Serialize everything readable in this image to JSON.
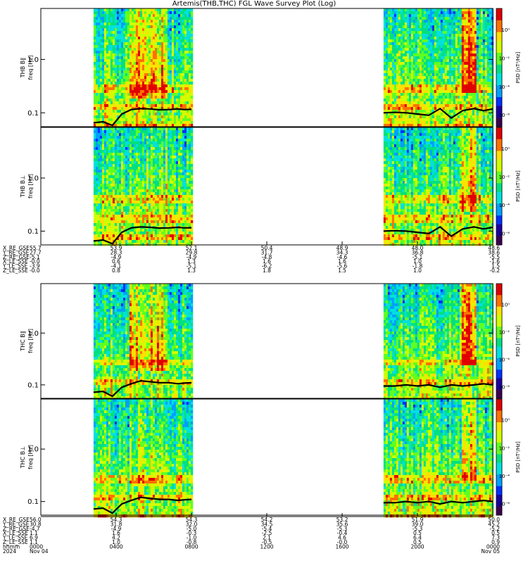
{
  "title": "Artemis(THB,THC) FGL Wave Survey Plot (Log)",
  "colors": {
    "trace": "#000000",
    "frame": "#000000",
    "background": "#ffffff",
    "colormap": [
      "#3b0050",
      "#1a00a0",
      "#0030ff",
      "#00a0ff",
      "#00e0e0",
      "#00e080",
      "#60ff20",
      "#d0ff00",
      "#ffe000",
      "#ff7000",
      "#e00000"
    ]
  },
  "chart_data": [
    {
      "type": "heatmap",
      "panel": "THB B_L",
      "ylabel_top": "THB B∥",
      "ylabel_bottom": "freq [Hz]",
      "yscale": "log",
      "ylim": [
        0.055,
        9.0
      ],
      "yticks": [
        "1.0",
        "0.1"
      ],
      "ytick_values": [
        1.0,
        0.1
      ],
      "xlim_hours": [
        0,
        24
      ],
      "data_intervals_hours": [
        [
          2.8,
          8.0
        ],
        [
          18.2,
          24.0
        ]
      ],
      "colorbar": {
        "label": "PSD [nT²/Hz]",
        "scale": "log",
        "ticks": [
          "10⁰",
          "10⁻²",
          "10⁻⁴",
          "10⁻⁶"
        ]
      },
      "overlay_line": {
        "name": "gyrofrequency",
        "segments": [
          {
            "x": [
              2.8,
              3.3,
              3.8,
              4.3,
              4.8,
              5.3,
              5.8,
              6.3,
              6.8,
              7.3,
              7.6,
              8.0
            ],
            "y": [
              0.065,
              0.068,
              0.058,
              0.095,
              0.115,
              0.12,
              0.118,
              0.114,
              0.115,
              0.118,
              0.115,
              0.116
            ]
          },
          {
            "x": [
              18.2,
              18.8,
              19.4,
              20.0,
              20.6,
              21.2,
              21.8,
              22.4,
              23.0,
              23.5,
              24.0
            ],
            "y": [
              0.1,
              0.102,
              0.1,
              0.095,
              0.09,
              0.12,
              0.08,
              0.11,
              0.12,
              0.11,
              0.118
            ]
          }
        ]
      }
    },
    {
      "type": "heatmap",
      "panel": "THB B_perp",
      "ylabel_top": "THB B⊥",
      "ylabel_bottom": "freq [Hz]",
      "yscale": "log",
      "ylim": [
        0.055,
        9.0
      ],
      "yticks": [
        "1.0",
        "0.1"
      ],
      "ytick_values": [
        1.0,
        0.1
      ],
      "xlim_hours": [
        0,
        24
      ],
      "data_intervals_hours": [
        [
          2.8,
          8.0
        ],
        [
          18.2,
          24.0
        ]
      ],
      "colorbar": {
        "label": "PSD [nT²/Hz]",
        "scale": "log",
        "ticks": [
          "10⁰",
          "10⁻²",
          "10⁻⁴",
          "10⁻⁶"
        ]
      },
      "overlay_line": {
        "name": "gyrofrequency",
        "segments": [
          {
            "x": [
              2.8,
              3.3,
              3.8,
              4.3,
              4.8,
              5.3,
              5.8,
              6.3,
              6.8,
              7.3,
              7.6,
              8.0
            ],
            "y": [
              0.065,
              0.068,
              0.058,
              0.095,
              0.115,
              0.12,
              0.118,
              0.114,
              0.115,
              0.118,
              0.115,
              0.116
            ]
          },
          {
            "x": [
              18.2,
              18.8,
              19.4,
              20.0,
              20.6,
              21.2,
              21.8,
              22.4,
              23.0,
              23.5,
              24.0
            ],
            "y": [
              0.1,
              0.102,
              0.1,
              0.095,
              0.09,
              0.12,
              0.08,
              0.11,
              0.12,
              0.11,
              0.118
            ]
          }
        ]
      }
    },
    {
      "type": "heatmap",
      "panel": "THC B_L",
      "ylabel_top": "THC B∥",
      "ylabel_bottom": "freq [Hz]",
      "yscale": "log",
      "ylim": [
        0.055,
        9.0
      ],
      "yticks": [
        "1.0",
        "0.1"
      ],
      "ytick_values": [
        1.0,
        0.1
      ],
      "xlim_hours": [
        0,
        24
      ],
      "data_intervals_hours": [
        [
          2.8,
          8.0
        ],
        [
          18.2,
          24.0
        ]
      ],
      "colorbar": {
        "label": "PSD [nT²/Hz]",
        "scale": "log",
        "ticks": [
          "10⁰",
          "10⁻²",
          "10⁻⁴",
          "10⁻⁶"
        ]
      },
      "overlay_line": {
        "name": "gyrofrequency",
        "segments": [
          {
            "x": [
              2.8,
              3.3,
              3.8,
              4.3,
              4.8,
              5.3,
              5.8,
              6.3,
              6.8,
              7.3,
              7.6,
              8.0
            ],
            "y": [
              0.072,
              0.075,
              0.06,
              0.09,
              0.105,
              0.12,
              0.115,
              0.11,
              0.11,
              0.105,
              0.108,
              0.11
            ]
          },
          {
            "x": [
              18.2,
              18.8,
              19.4,
              20.0,
              20.6,
              21.2,
              21.8,
              22.4,
              23.0,
              23.5,
              24.0
            ],
            "y": [
              0.095,
              0.095,
              0.1,
              0.095,
              0.1,
              0.09,
              0.1,
              0.095,
              0.1,
              0.105,
              0.1
            ]
          }
        ]
      }
    },
    {
      "type": "heatmap",
      "panel": "THC B_perp",
      "ylabel_top": "THC B⊥",
      "ylabel_bottom": "freq [Hz]",
      "yscale": "log",
      "ylim": [
        0.055,
        9.0
      ],
      "yticks": [
        "1.0",
        "0.1"
      ],
      "ytick_values": [
        1.0,
        0.1
      ],
      "xlim_hours": [
        0,
        24
      ],
      "data_intervals_hours": [
        [
          2.8,
          8.0
        ],
        [
          18.2,
          24.0
        ]
      ],
      "colorbar": {
        "label": "PSD [nT²/Hz]",
        "scale": "log",
        "ticks": [
          "10⁰",
          "10⁻²",
          "10⁻⁴",
          "10⁻⁶"
        ]
      },
      "overlay_line": {
        "name": "gyrofrequency",
        "segments": [
          {
            "x": [
              2.8,
              3.3,
              3.8,
              4.3,
              4.8,
              5.3,
              5.8,
              6.3,
              6.8,
              7.3,
              7.6,
              8.0
            ],
            "y": [
              0.072,
              0.075,
              0.06,
              0.09,
              0.105,
              0.12,
              0.115,
              0.11,
              0.11,
              0.105,
              0.108,
              0.11
            ]
          },
          {
            "x": [
              18.2,
              18.8,
              19.4,
              20.0,
              20.6,
              21.2,
              21.8,
              22.4,
              23.0,
              23.5,
              24.0
            ],
            "y": [
              0.095,
              0.095,
              0.1,
              0.095,
              0.1,
              0.09,
              0.1,
              0.095,
              0.1,
              0.105,
              0.1
            ]
          }
        ]
      }
    }
  ],
  "ephemeris": [
    {
      "labels": [
        "X_RE_GSE",
        "Y_RE_GSE",
        "Z_RE_GSE",
        "X_LE_SSE",
        "Y_LE_SSE",
        "Z_LE_SSE"
      ],
      "first_values": [
        "55.7",
        "27.7",
        "-5.1",
        "-0.0",
        "-3.9",
        "-0.0"
      ],
      "columns": [
        [
          "53.9",
          "28.3",
          "-4.9",
          "0.6",
          "-4.1",
          "0.8"
        ],
        [
          "52.1",
          "29.8",
          "-4.9",
          "1.3",
          "-5.1",
          "1.3"
        ],
        [
          "50.4",
          "31.7",
          "-4.8",
          "1.6",
          "-6.2",
          "1.8"
        ],
        [
          "48.9",
          "34.3",
          "-4.6",
          "1.6",
          "-5.6",
          "1.5"
        ],
        [
          "48.0",
          "36.8",
          "-5.1",
          "1.0",
          "-1.8",
          "1.0"
        ],
        [
          "48.6",
          "38.6",
          "-5.5",
          "-1.6",
          "1.5",
          "-0.2"
        ]
      ]
    },
    {
      "labels": [
        "X_RE_GSE",
        "Y_RE_GSE",
        "Z_RE_GSE",
        "X_LE_SSE",
        "Y_LE_SSE",
        "Z_LE_SSE",
        "hhmm",
        "2024"
      ],
      "first_values": [
        "56.0",
        "30.8",
        "-4.7",
        "1.1",
        "6.9",
        "1.1",
        "0000",
        "Nov 04"
      ],
      "columns": [
        [
          "54.3",
          "31.8",
          "-4.9",
          "1.6",
          "4.2",
          "1.0",
          "0400",
          ""
        ],
        [
          "54.3",
          "32.0",
          "-5.0",
          "-0.3",
          "-1.0",
          "-0.8",
          "0800",
          ""
        ],
        [
          "54.2",
          "34.5",
          "-5.4",
          "-2.5",
          "2.1",
          "-0.5",
          "1200",
          ""
        ],
        [
          "53.2",
          "35.6",
          "-5.3",
          "-0.4",
          "4.6",
          "-0.0",
          "1600",
          ""
        ],
        [
          "51.9",
          "39.0",
          "-5.3",
          "0.5",
          "6.4",
          "0.5",
          "2000",
          ""
        ],
        [
          "50.0",
          "45.2",
          "-5.2",
          "0.5",
          "7.3",
          "0.9",
          "0000",
          "Nov 05"
        ]
      ]
    }
  ]
}
